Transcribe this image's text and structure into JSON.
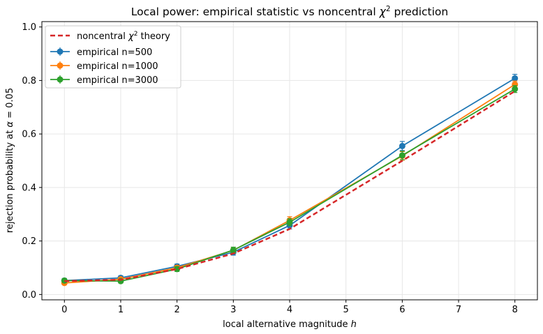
{
  "chart_data": {
    "type": "line",
    "title_parts": [
      "Local power: empirical statistic vs noncentral ",
      "χ",
      "2",
      " prediction"
    ],
    "xlabel_parts": [
      "local alternative magnitude ",
      "h"
    ],
    "ylabel_parts": [
      "rejection probability at ",
      "α",
      " = 0.05"
    ],
    "xlim": [
      -0.4,
      8.4
    ],
    "ylim": [
      -0.02,
      1.02
    ],
    "xticks": [
      0,
      1,
      2,
      3,
      4,
      5,
      6,
      7,
      8
    ],
    "yticks": [
      0.0,
      0.2,
      0.4,
      0.6,
      0.8,
      1.0
    ],
    "grid": true,
    "legend_position": "top-left",
    "x": [
      0,
      1,
      2,
      3,
      4,
      6,
      8
    ],
    "theory": {
      "name_parts": [
        "noncentral ",
        "χ",
        "2",
        " theory"
      ],
      "color": "#d62728",
      "style": "dashed",
      "values": [
        0.05,
        0.055,
        0.095,
        0.153,
        0.245,
        0.5,
        0.76
      ]
    },
    "series": [
      {
        "name": "empirical n=500",
        "color": "#1f77b4",
        "values": [
          0.052,
          0.062,
          0.105,
          0.158,
          0.258,
          0.555,
          0.808
        ],
        "errors": [
          0.008,
          0.008,
          0.009,
          0.011,
          0.013,
          0.017,
          0.015
        ]
      },
      {
        "name": "empirical n=1000",
        "color": "#ff7f0e",
        "values": [
          0.043,
          0.057,
          0.1,
          0.165,
          0.277,
          0.518,
          0.785
        ],
        "errors": [
          0.007,
          0.007,
          0.009,
          0.011,
          0.014,
          0.016,
          0.013
        ]
      },
      {
        "name": "empirical n=3000",
        "color": "#2ca02c",
        "values": [
          0.052,
          0.05,
          0.095,
          0.166,
          0.27,
          0.52,
          0.768
        ],
        "errors": [
          0.007,
          0.007,
          0.009,
          0.011,
          0.013,
          0.016,
          0.013
        ]
      }
    ]
  }
}
